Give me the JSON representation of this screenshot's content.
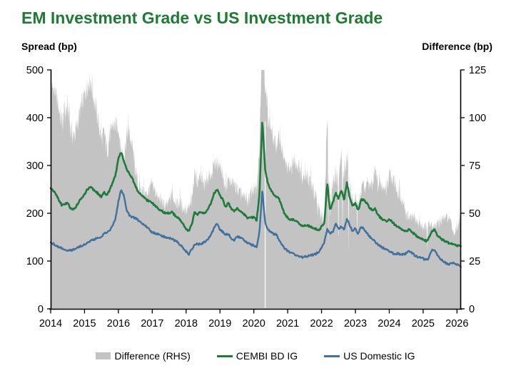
{
  "title": "EM Investment Grade vs US Investment Grade",
  "title_color": "#1e7b34",
  "left_axis": {
    "title": "Spread (bp)",
    "ticks": [
      0,
      100,
      200,
      300,
      400,
      500
    ],
    "min": 0,
    "max": 500
  },
  "right_axis": {
    "title": "Difference (bp)",
    "ticks": [
      0,
      25,
      50,
      75,
      100,
      125
    ],
    "min": 0,
    "max": 125
  },
  "x_axis": {
    "tick_labels": [
      "2014",
      "2015",
      "2016",
      "2017",
      "2018",
      "2019",
      "2020",
      "2021",
      "2022",
      "2023",
      "2024",
      "2025",
      "2026"
    ],
    "start": 2014,
    "end": 2026.12
  },
  "legend": [
    {
      "label": "Difference (RHS)",
      "color": "#c3c3c3",
      "marker": "area"
    },
    {
      "label": "CEMBI BD IG",
      "color": "#1f7a3c",
      "marker": "line"
    },
    {
      "label": "US Domestic IG",
      "color": "#41719c",
      "marker": "line"
    }
  ],
  "colors": {
    "area_gray": "#c3c3c3",
    "cembi_green": "#1f7a3c",
    "us_blue": "#41719c",
    "axis_black": "#000000"
  },
  "chart_data": {
    "type": "area+line combo, monthly series Jan-2014 to Feb-2026",
    "t_start": 2014,
    "t_step_years": 0.0833333,
    "grid": false,
    "legend_position": "bottom",
    "series": [
      {
        "name": "Difference (RHS)",
        "axis": "right",
        "style": "area",
        "note": "equals CEMBI minus US, daily spikes, clipped at 125",
        "values": [
          114,
          111,
          106,
          98,
          90,
          95,
          99,
          88,
          83,
          87,
          94,
          100,
          105,
          111,
          114,
          106,
          99,
          91,
          82,
          86,
          77,
          84,
          91,
          90,
          90,
          78,
          73,
          87,
          86,
          80,
          68,
          60,
          58,
          57,
          56,
          59,
          62,
          58,
          54,
          54,
          51,
          50,
          53,
          56,
          53,
          51,
          52,
          49,
          48,
          49,
          52,
          68,
          62,
          67,
          61,
          62,
          64,
          67,
          73,
          71,
          72,
          67,
          58,
          64,
          62,
          61,
          59,
          57,
          54,
          55,
          52,
          57,
          59,
          57,
          80,
          145,
          112,
          95,
          90,
          83,
          80,
          86,
          79,
          72,
          70,
          68,
          72,
          72,
          69,
          65,
          66,
          64,
          60,
          57,
          52,
          45,
          44,
          40,
          100,
          47,
          60,
          65,
          62,
          76,
          63,
          76,
          57,
          52,
          54,
          49,
          56,
          60,
          62,
          60,
          60,
          69,
          61,
          60,
          59,
          58,
          67,
          65,
          62,
          55,
          55,
          51,
          46,
          44,
          44,
          44,
          42,
          41,
          40,
          40,
          41,
          40,
          41,
          41,
          43,
          44,
          45,
          45,
          41,
          37,
          39,
          42
        ]
      },
      {
        "name": "CEMBI BD IG",
        "axis": "left",
        "style": "line",
        "values": [
          252,
          247,
          238,
          227,
          216,
          219,
          222,
          210,
          207,
          214,
          224,
          232,
          240,
          250,
          256,
          250,
          246,
          240,
          234,
          244,
          238,
          250,
          264,
          280,
          315,
          328,
          308,
          292,
          281,
          272,
          258,
          245,
          238,
          233,
          228,
          225,
          222,
          216,
          210,
          207,
          202,
          199,
          201,
          202,
          196,
          190,
          186,
          176,
          168,
          163,
          177,
          201,
          198,
          202,
          199,
          203,
          212,
          224,
          243,
          250,
          238,
          228,
          213,
          221,
          210,
          203,
          211,
          206,
          200,
          196,
          189,
          191,
          192,
          185,
          240,
          395,
          292,
          262,
          250,
          240,
          235,
          230,
          212,
          198,
          191,
          185,
          187,
          184,
          179,
          173,
          175,
          174,
          172,
          170,
          167,
          164,
          172,
          180,
          266,
          205,
          222,
          243,
          230,
          248,
          228,
          264,
          232,
          215,
          222,
          205,
          228,
          228,
          222,
          212,
          206,
          209,
          196,
          190,
          186,
          183,
          188,
          182,
          176,
          171,
          168,
          165,
          162,
          166,
          161,
          156,
          151,
          148,
          145,
          142,
          147,
          162,
          166,
          153,
          148,
          144,
          141,
          138,
          136,
          134,
          132,
          131
        ]
      },
      {
        "name": "US Domestic IG",
        "axis": "left",
        "style": "line",
        "values": [
          138,
          136,
          132,
          129,
          126,
          124,
          123,
          122,
          124,
          127,
          130,
          132,
          135,
          139,
          142,
          144,
          147,
          149,
          152,
          158,
          161,
          166,
          173,
          190,
          225,
          250,
          235,
          205,
          195,
          192,
          190,
          185,
          180,
          176,
          172,
          166,
          160,
          158,
          156,
          153,
          151,
          149,
          148,
          146,
          143,
          139,
          134,
          127,
          120,
          114,
          125,
          133,
          136,
          135,
          138,
          141,
          148,
          157,
          170,
          179,
          166,
          161,
          155,
          157,
          148,
          142,
          152,
          149,
          146,
          141,
          137,
          134,
          133,
          128,
          160,
          250,
          180,
          167,
          160,
          157,
          155,
          144,
          133,
          126,
          121,
          117,
          115,
          112,
          110,
          108,
          109,
          110,
          112,
          113,
          115,
          119,
          128,
          140,
          166,
          158,
          162,
          178,
          168,
          172,
          165,
          188,
          175,
          163,
          168,
          156,
          172,
          168,
          160,
          152,
          146,
          140,
          135,
          130,
          127,
          125,
          121,
          117,
          114,
          116,
          113,
          114,
          116,
          122,
          117,
          112,
          109,
          107,
          105,
          102,
          106,
          122,
          125,
          112,
          105,
          100,
          96,
          93,
          95,
          97,
          93,
          89
        ]
      }
    ],
    "gray_noise_amp_keyframes": [
      [
        2014,
        6
      ],
      [
        2014.3,
        14
      ],
      [
        2015.6,
        12
      ],
      [
        2016.5,
        9
      ],
      [
        2017,
        7
      ],
      [
        2019,
        7
      ],
      [
        2020,
        8
      ],
      [
        2020.5,
        10
      ],
      [
        2021,
        8
      ],
      [
        2022.2,
        12
      ],
      [
        2023,
        9
      ],
      [
        2024,
        8
      ],
      [
        2025,
        6
      ],
      [
        2026.12,
        5
      ]
    ],
    "gray_notches": [
      {
        "t": 2022.2,
        "v": 30
      },
      {
        "t": 2022.5,
        "v": 27
      },
      {
        "t": 2022.62,
        "v": 33
      },
      {
        "t": 2022.8,
        "v": 30
      },
      {
        "t": 2023.05,
        "v": 38
      },
      {
        "t": 2025.12,
        "v": 30
      }
    ],
    "data_gap_t": 2020.335
  }
}
